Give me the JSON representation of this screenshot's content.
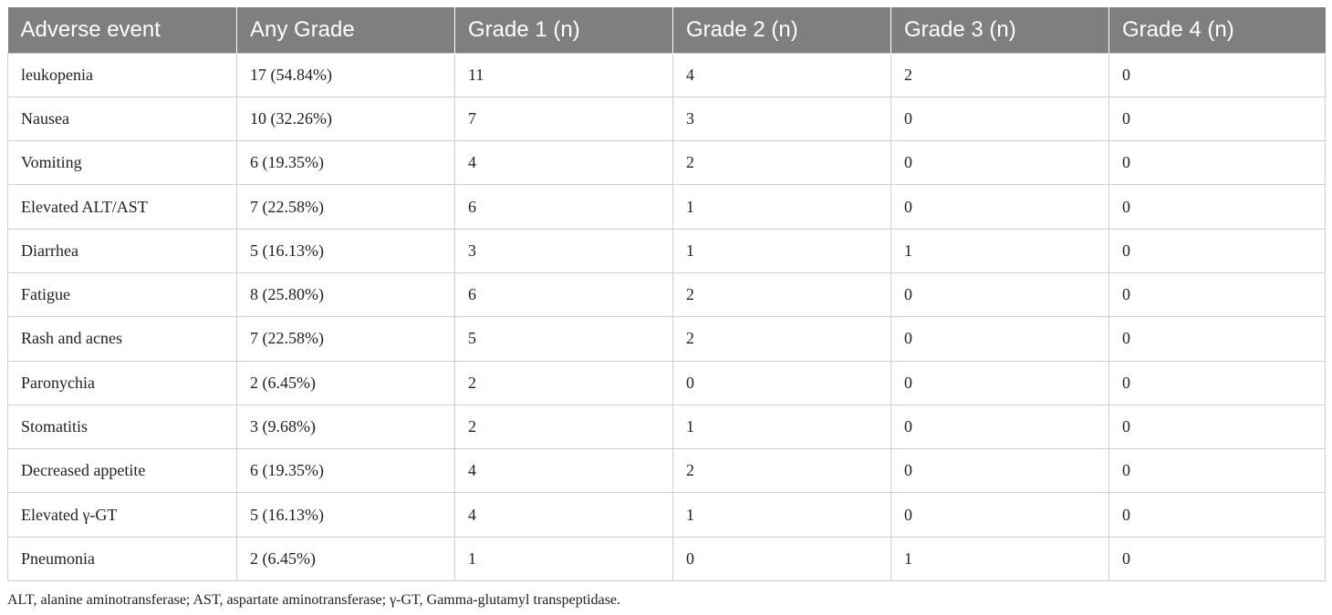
{
  "table": {
    "header": [
      "Adverse event",
      "Any Grade",
      "Grade 1 (n)",
      "Grade 2 (n)",
      "Grade 3 (n)",
      "Grade 4 (n)"
    ],
    "rows": [
      [
        "leukopenia",
        "17 (54.84%)",
        "11",
        "4",
        "2",
        "0"
      ],
      [
        "Nausea",
        "10 (32.26%)",
        "7",
        "3",
        "0",
        "0"
      ],
      [
        "Vomiting",
        "6 (19.35%)",
        "4",
        "2",
        "0",
        "0"
      ],
      [
        "Elevated ALT/AST",
        "7 (22.58%)",
        "6",
        "1",
        "0",
        "0"
      ],
      [
        "Diarrhea",
        "5 (16.13%)",
        "3",
        "1",
        "1",
        "0"
      ],
      [
        "Fatigue",
        "8 (25.80%)",
        "6",
        "2",
        "0",
        "0"
      ],
      [
        "Rash and acnes",
        "7 (22.58%)",
        "5",
        "2",
        "0",
        "0"
      ],
      [
        "Paronychia",
        "2 (6.45%)",
        "2",
        "0",
        "0",
        "0"
      ],
      [
        "Stomatitis",
        "3 (9.68%)",
        "2",
        "1",
        "0",
        "0"
      ],
      [
        "Decreased appetite",
        "6 (19.35%)",
        "4",
        "2",
        "0",
        "0"
      ],
      [
        "Elevated γ-GT",
        "5 (16.13%)",
        "4",
        "1",
        "0",
        "0"
      ],
      [
        "Pneumonia",
        "2 (6.45%)",
        "1",
        "0",
        "1",
        "0"
      ]
    ],
    "footnote": "ALT, alanine aminotransferase; AST, aspartate aminotransferase; γ-GT, Gamma-glutamyl transpeptidase."
  }
}
